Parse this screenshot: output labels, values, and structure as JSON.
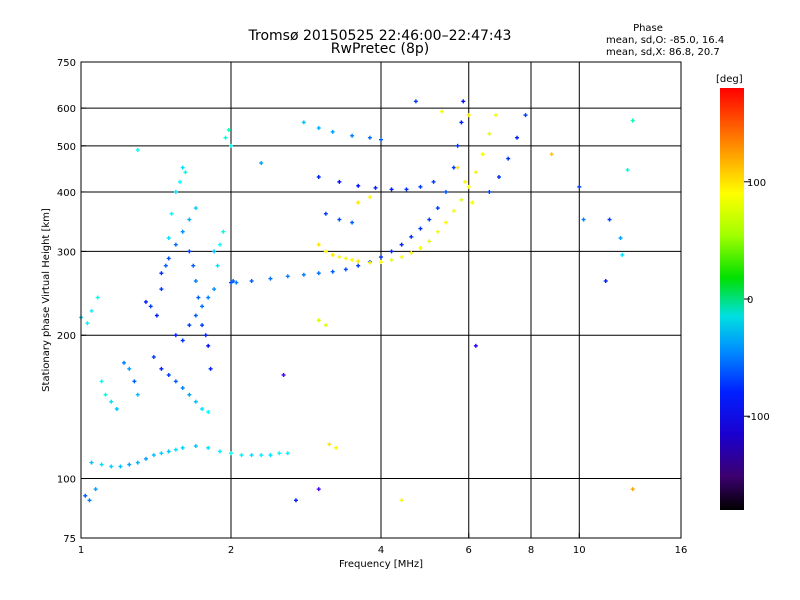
{
  "chart_data": {
    "type": "scatter",
    "title": "Tromsø 20150525 22:46:00–22:47:43",
    "subtitle": "RwPretec (8p)",
    "xlabel": "Frequency [MHz]",
    "ylabel": "Stationary phase Virtual Height [km]",
    "x_scale": "log2",
    "y_scale": "log",
    "xlim": [
      1,
      16
    ],
    "ylim": [
      75,
      750
    ],
    "x_ticks": [
      {
        "value": 1,
        "label": "1"
      },
      {
        "value": 2,
        "label": "2"
      },
      {
        "value": 4,
        "label": "4"
      },
      {
        "value": 6,
        "label": "6"
      },
      {
        "value": 8,
        "label": "8"
      },
      {
        "value": 10,
        "label": "10"
      },
      {
        "value": 16,
        "label": "16"
      }
    ],
    "y_ticks": [
      {
        "value": 75,
        "label": "75"
      },
      {
        "value": 100,
        "label": "100"
      },
      {
        "value": 200,
        "label": "200"
      },
      {
        "value": 300,
        "label": "300"
      },
      {
        "value": 400,
        "label": "400"
      },
      {
        "value": 500,
        "label": "500"
      },
      {
        "value": 600,
        "label": "600"
      },
      {
        "value": 750,
        "label": "750"
      }
    ],
    "grid": true,
    "colorbar": {
      "unit": "[deg]",
      "range": [
        -180,
        180
      ],
      "ticks": [
        {
          "value": 100,
          "label": "100"
        },
        {
          "value": 0,
          "label": "0"
        },
        {
          "value": -100,
          "label": "-100"
        }
      ]
    },
    "stats": {
      "heading": "Phase",
      "line1": "mean, sd,O: -85.0, 16.4",
      "line2": "mean, sd,X:  86.8, 20.7"
    },
    "series": [
      {
        "points": [
          [
            1.0,
            218,
            -60
          ],
          [
            1.03,
            212,
            -55
          ],
          [
            1.05,
            225,
            -50
          ],
          [
            1.08,
            240,
            -45
          ],
          [
            1.02,
            92,
            -100
          ],
          [
            1.04,
            90,
            -90
          ],
          [
            1.07,
            95,
            -80
          ],
          [
            1.1,
            160,
            -50
          ],
          [
            1.12,
            150,
            -40
          ],
          [
            1.15,
            145,
            -60
          ],
          [
            1.18,
            140,
            -70
          ],
          [
            1.22,
            175,
            -90
          ],
          [
            1.25,
            170,
            -80
          ],
          [
            1.28,
            160,
            -100
          ],
          [
            1.3,
            150,
            -70
          ],
          [
            1.35,
            235,
            -120
          ],
          [
            1.38,
            230,
            -110
          ],
          [
            1.42,
            220,
            -120
          ],
          [
            1.45,
            250,
            -110
          ],
          [
            1.48,
            280,
            -100
          ],
          [
            1.5,
            320,
            -60
          ],
          [
            1.52,
            360,
            -50
          ],
          [
            1.55,
            400,
            -60
          ],
          [
            1.58,
            420,
            -50
          ],
          [
            1.62,
            440,
            -40
          ],
          [
            1.65,
            300,
            -110
          ],
          [
            1.68,
            280,
            -100
          ],
          [
            1.7,
            260,
            -90
          ],
          [
            1.72,
            240,
            -100
          ],
          [
            1.75,
            210,
            -110
          ],
          [
            1.78,
            200,
            -120
          ],
          [
            1.8,
            190,
            -125
          ],
          [
            1.82,
            170,
            -120
          ],
          [
            1.85,
            300,
            -70
          ],
          [
            1.88,
            280,
            -60
          ],
          [
            1.9,
            310,
            -50
          ],
          [
            1.93,
            330,
            -40
          ],
          [
            1.95,
            520,
            -40
          ],
          [
            1.98,
            540,
            -30
          ],
          [
            2.0,
            500,
            -50
          ],
          [
            2.02,
            260,
            -100
          ],
          [
            2.05,
            258,
            -90
          ],
          [
            1.4,
            180,
            -110
          ],
          [
            1.45,
            170,
            -120
          ],
          [
            1.5,
            165,
            -110
          ],
          [
            1.55,
            160,
            -100
          ],
          [
            1.6,
            155,
            -90
          ],
          [
            1.65,
            150,
            -80
          ],
          [
            1.7,
            145,
            -70
          ],
          [
            1.75,
            140,
            -60
          ],
          [
            1.8,
            138,
            -50
          ],
          [
            1.55,
            200,
            -120
          ],
          [
            1.6,
            195,
            -115
          ],
          [
            1.65,
            210,
            -110
          ],
          [
            1.7,
            220,
            -100
          ],
          [
            1.75,
            230,
            -95
          ],
          [
            1.8,
            240,
            -90
          ],
          [
            1.85,
            250,
            -85
          ],
          [
            1.45,
            270,
            -115
          ],
          [
            1.5,
            290,
            -105
          ],
          [
            1.55,
            310,
            -95
          ],
          [
            1.6,
            330,
            -85
          ],
          [
            1.65,
            350,
            -75
          ],
          [
            1.7,
            370,
            -65
          ]
        ]
      },
      {
        "points": [
          [
            1.05,
            108,
            -70
          ],
          [
            1.1,
            107,
            -60
          ],
          [
            1.15,
            106,
            -65
          ],
          [
            1.2,
            106,
            -70
          ],
          [
            1.25,
            107,
            -80
          ],
          [
            1.3,
            108,
            -75
          ],
          [
            1.35,
            110,
            -80
          ],
          [
            1.4,
            112,
            -70
          ],
          [
            1.45,
            113,
            -65
          ],
          [
            1.5,
            114,
            -70
          ],
          [
            1.55,
            115,
            -60
          ],
          [
            1.6,
            116,
            -65
          ],
          [
            1.7,
            117,
            -70
          ],
          [
            1.8,
            116,
            -60
          ],
          [
            1.9,
            114,
            -55
          ],
          [
            2.0,
            113,
            -50
          ],
          [
            2.1,
            112,
            -55
          ],
          [
            2.2,
            112,
            -60
          ],
          [
            2.3,
            112,
            -55
          ],
          [
            2.4,
            112,
            -60
          ],
          [
            2.5,
            113,
            -50
          ],
          [
            2.6,
            113,
            -55
          ]
        ]
      },
      {
        "points": [
          [
            2.0,
            258,
            -105
          ],
          [
            2.2,
            260,
            -100
          ],
          [
            2.4,
            263,
            -95
          ],
          [
            2.6,
            266,
            -90
          ],
          [
            2.8,
            268,
            -90
          ],
          [
            3.0,
            270,
            -95
          ],
          [
            3.2,
            272,
            -100
          ],
          [
            3.4,
            275,
            -105
          ],
          [
            3.6,
            280,
            -110
          ],
          [
            3.8,
            285,
            -115
          ],
          [
            4.0,
            292,
            -115
          ],
          [
            4.2,
            300,
            -120
          ],
          [
            4.4,
            310,
            -120
          ],
          [
            4.6,
            322,
            -115
          ],
          [
            4.8,
            335,
            -115
          ],
          [
            5.0,
            350,
            -110
          ],
          [
            5.2,
            370,
            -110
          ],
          [
            5.4,
            400,
            -105
          ],
          [
            5.6,
            450,
            -110
          ],
          [
            5.7,
            500,
            -115
          ],
          [
            5.8,
            560,
            -120
          ],
          [
            5.85,
            620,
            -125
          ]
        ]
      },
      {
        "points": [
          [
            2.8,
            560,
            -70
          ],
          [
            3.0,
            545,
            -75
          ],
          [
            3.2,
            535,
            -80
          ],
          [
            3.5,
            525,
            -90
          ],
          [
            3.8,
            520,
            -95
          ],
          [
            4.0,
            515,
            -100
          ],
          [
            3.0,
            430,
            -120
          ],
          [
            3.3,
            420,
            -125
          ],
          [
            3.6,
            412,
            -125
          ],
          [
            3.9,
            408,
            -120
          ],
          [
            4.2,
            405,
            -120
          ],
          [
            4.5,
            405,
            -115
          ],
          [
            4.8,
            410,
            -110
          ],
          [
            5.1,
            420,
            -110
          ],
          [
            3.1,
            360,
            -110
          ],
          [
            3.3,
            350,
            -105
          ],
          [
            3.5,
            345,
            -100
          ],
          [
            6.6,
            400,
            -110
          ],
          [
            6.9,
            430,
            -115
          ],
          [
            7.2,
            470,
            -115
          ],
          [
            7.5,
            520,
            -120
          ],
          [
            7.8,
            580,
            -110
          ]
        ]
      },
      {
        "points": [
          [
            3.0,
            310,
            110
          ],
          [
            3.1,
            300,
            105
          ],
          [
            3.2,
            295,
            110
          ],
          [
            3.3,
            292,
            105
          ],
          [
            3.4,
            290,
            100
          ],
          [
            3.5,
            288,
            105
          ],
          [
            3.6,
            286,
            110
          ],
          [
            3.8,
            284,
            105
          ],
          [
            4.0,
            285,
            100
          ],
          [
            4.2,
            288,
            95
          ],
          [
            4.4,
            292,
            100
          ],
          [
            4.6,
            298,
            105
          ],
          [
            4.8,
            305,
            100
          ],
          [
            5.0,
            315,
            95
          ],
          [
            5.2,
            330,
            100
          ],
          [
            5.4,
            345,
            105
          ],
          [
            5.6,
            365,
            100
          ],
          [
            5.8,
            385,
            95
          ],
          [
            6.0,
            410,
            100
          ],
          [
            6.2,
            440,
            105
          ],
          [
            6.4,
            480,
            100
          ],
          [
            6.6,
            530,
            95
          ],
          [
            6.8,
            580,
            100
          ],
          [
            3.0,
            215,
            90
          ],
          [
            3.1,
            210,
            95
          ],
          [
            3.15,
            118,
            110
          ],
          [
            3.25,
            116,
            105
          ],
          [
            5.7,
            450,
            110
          ],
          [
            5.9,
            420,
            105
          ],
          [
            6.1,
            380,
            100
          ],
          [
            3.6,
            380,
            110
          ],
          [
            3.8,
            390,
            105
          ]
        ]
      },
      {
        "points": [
          [
            2.55,
            165,
            -150
          ],
          [
            2.7,
            90,
            -120
          ],
          [
            3.0,
            95,
            -150
          ],
          [
            4.4,
            90,
            100
          ],
          [
            6.2,
            190,
            -140
          ],
          [
            10.0,
            410,
            -110
          ],
          [
            10.2,
            350,
            -90
          ],
          [
            11.3,
            260,
            -120
          ],
          [
            11.5,
            350,
            -110
          ],
          [
            12.1,
            320,
            -80
          ],
          [
            12.2,
            295,
            -60
          ],
          [
            12.5,
            445,
            -40
          ],
          [
            12.8,
            565,
            -30
          ],
          [
            12.8,
            95,
            130
          ],
          [
            8.8,
            480,
            120
          ],
          [
            6.0,
            580,
            110
          ],
          [
            5.3,
            590,
            100
          ],
          [
            4.7,
            620,
            -110
          ],
          [
            2.3,
            460,
            -80
          ],
          [
            1.6,
            450,
            -60
          ],
          [
            1.3,
            490,
            -50
          ]
        ]
      }
    ]
  }
}
